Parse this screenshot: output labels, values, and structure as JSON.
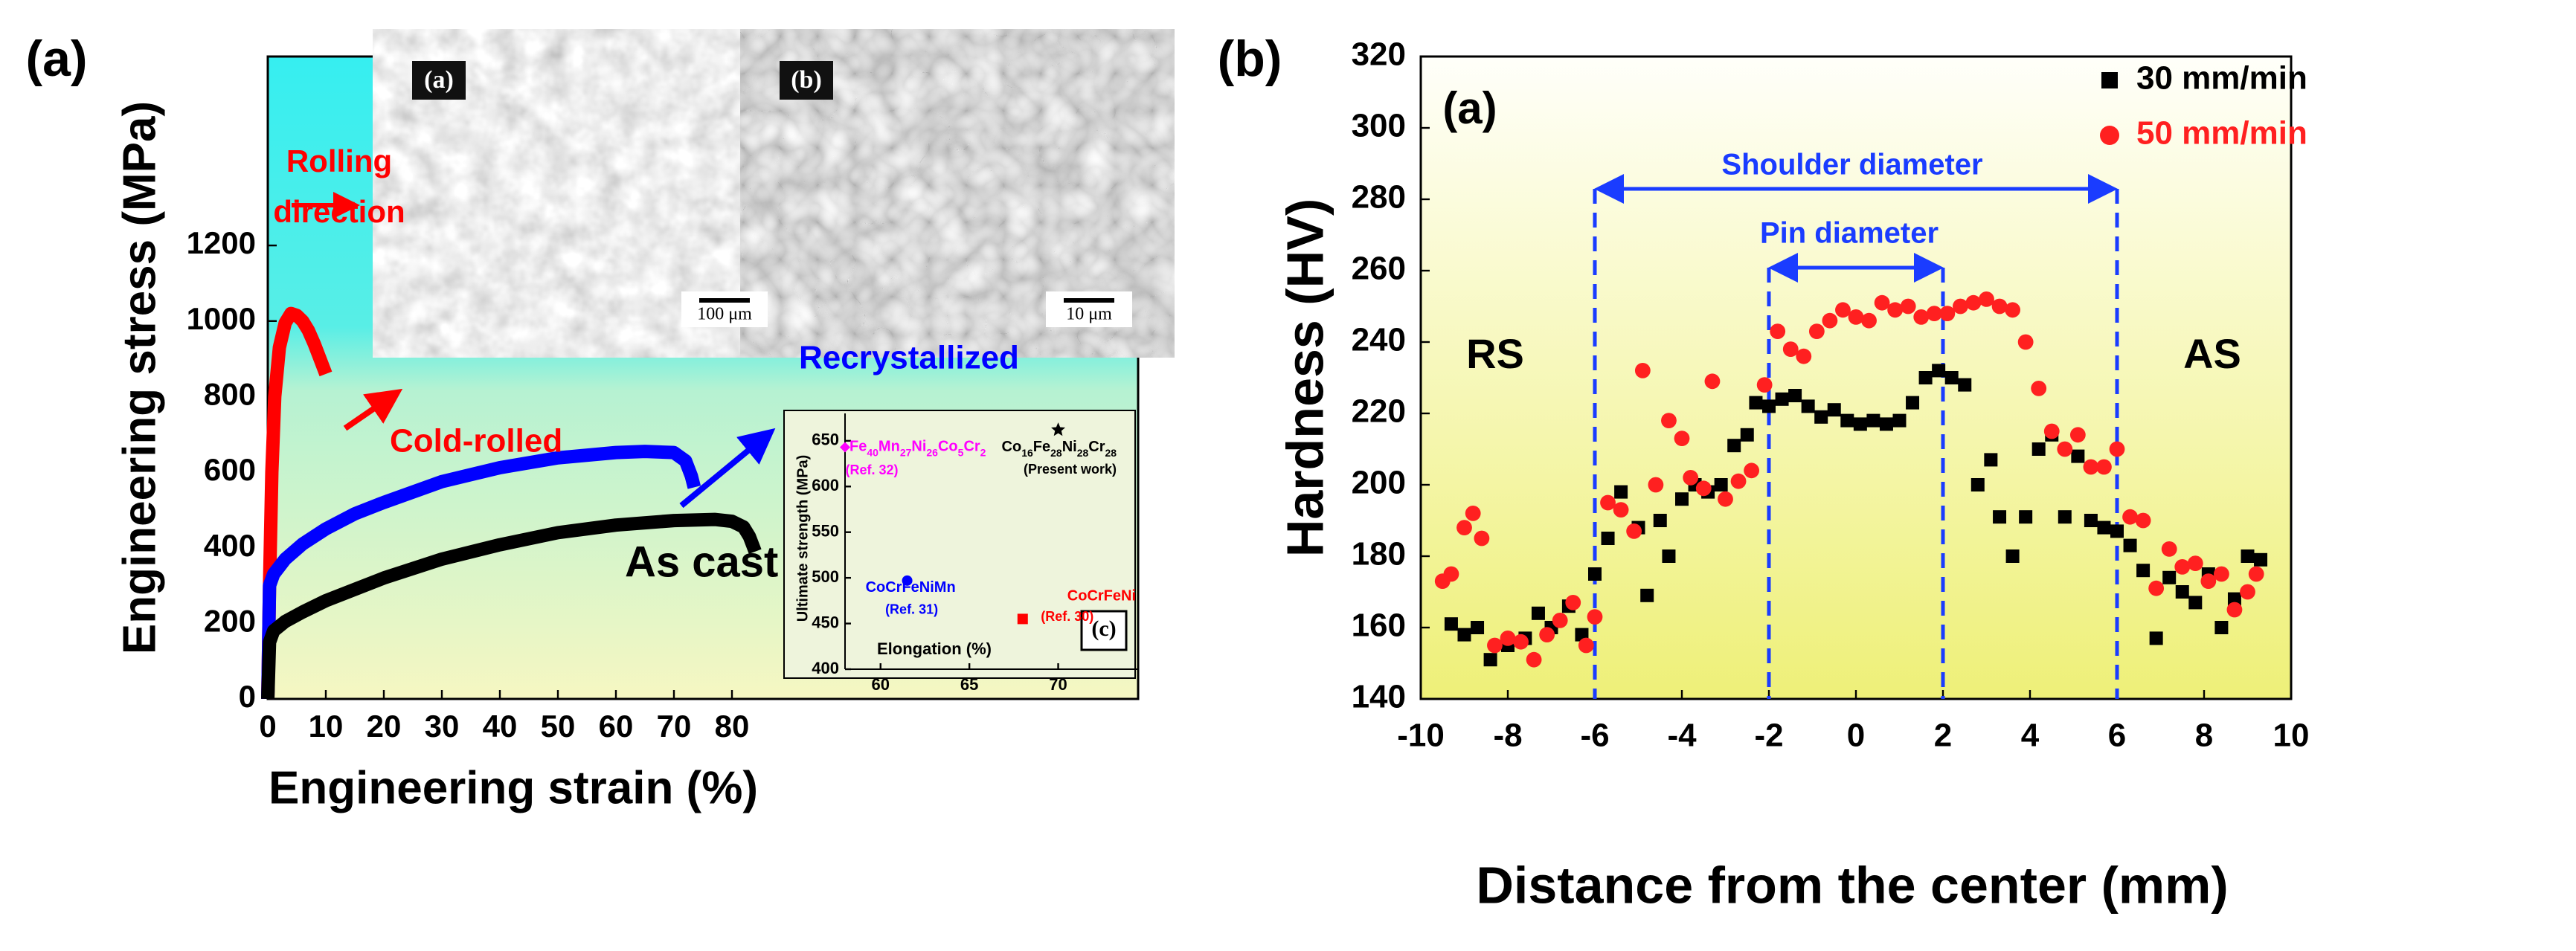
{
  "panel_labels": [
    "(a)",
    "(b)"
  ],
  "chart_data": [
    {
      "type": "line",
      "xlabel": "Engineering strain (%)",
      "ylabel": "Engineering stress (MPa)",
      "xlim": [
        0,
        150
      ],
      "xticks": [
        0,
        10,
        20,
        30,
        40,
        50,
        60,
        70,
        80
      ],
      "ylim": [
        0,
        1700
      ],
      "yticks": [
        0,
        200,
        400,
        600,
        800,
        1000,
        1200
      ],
      "series": [
        {
          "name": "Cold-rolled",
          "color": "#ff0000",
          "x": [
            0,
            0.3,
            0.7,
            1.2,
            2,
            3,
            4,
            5,
            6,
            7,
            8,
            9,
            10
          ],
          "values": [
            0,
            300,
            600,
            800,
            930,
            995,
            1020,
            1015,
            1000,
            975,
            940,
            900,
            860
          ]
        },
        {
          "name": "Recrystallized",
          "color": "#0000ff",
          "x": [
            0,
            0.3,
            1,
            3,
            6,
            10,
            15,
            20,
            30,
            40,
            50,
            60,
            65,
            70,
            72,
            73,
            73.5
          ],
          "values": [
            0,
            300,
            330,
            370,
            410,
            450,
            490,
            520,
            575,
            612,
            638,
            652,
            655,
            652,
            630,
            590,
            560
          ]
        },
        {
          "name": "As cast",
          "color": "#000000",
          "x": [
            0,
            0.3,
            1,
            3,
            6,
            10,
            15,
            20,
            30,
            40,
            50,
            60,
            70,
            77,
            80,
            82,
            83,
            84
          ],
          "values": [
            0,
            150,
            180,
            205,
            230,
            260,
            290,
            320,
            370,
            408,
            440,
            460,
            472,
            475,
            470,
            455,
            430,
            390
          ]
        }
      ],
      "annotations": [
        "Rolling direction"
      ],
      "images": [
        {
          "label": "(a)",
          "scale_bar": "100 μm"
        },
        {
          "label": "(b)",
          "scale_bar": "10 μm"
        }
      ]
    },
    {
      "type": "scatter",
      "panel": "(c)",
      "xlabel": "Elongation (%)",
      "ylabel": "Ultimate strength (MPa)",
      "xlim": [
        58,
        74.5
      ],
      "xticks": [
        60,
        65,
        70
      ],
      "ylim": [
        400,
        680
      ],
      "yticks": [
        400,
        450,
        500,
        550,
        600,
        650
      ],
      "series": [
        {
          "name": "Fe40Mn27Ni26Co5Cr2",
          "note": "(Ref. 32)",
          "color": "#ff00ff",
          "marker": "diamond",
          "x": [
            58
          ],
          "values": [
            643
          ]
        },
        {
          "name": "Co16Fe28Ni28Cr28",
          "note": "(Present work)",
          "color": "#000000",
          "marker": "star",
          "x": [
            70
          ],
          "values": [
            662
          ]
        },
        {
          "name": "CoCrFeNiMn",
          "note": "(Ref. 31)",
          "color": "#0000ff",
          "marker": "circle",
          "x": [
            61.5
          ],
          "values": [
            497
          ]
        },
        {
          "name": "CoCrFeNi",
          "note": "(Ref. 30)",
          "color": "#ff0000",
          "marker": "square",
          "x": [
            68
          ],
          "values": [
            455
          ]
        }
      ]
    },
    {
      "type": "scatter",
      "xlabel": "Distance from the center (mm)",
      "ylabel": "Hardness (HV)",
      "xlim": [
        -10,
        10
      ],
      "xticks": [
        -10,
        -8,
        -6,
        -4,
        -2,
        0,
        2,
        4,
        6,
        8,
        10
      ],
      "ylim": [
        140,
        320
      ],
      "yticks": [
        140,
        160,
        180,
        200,
        220,
        240,
        260,
        280,
        300,
        320
      ],
      "legend": "upper right",
      "vlines": [
        -6,
        -2,
        2,
        6
      ],
      "annotations": [
        "(a)",
        "RS",
        "AS",
        "Shoulder diameter",
        "Pin diameter"
      ],
      "series": [
        {
          "name": "30 mm/min",
          "color": "#000000",
          "marker": "square",
          "x": [
            -9.3,
            -9,
            -8.7,
            -8.4,
            -8,
            -7.6,
            -7.3,
            -7,
            -6.6,
            -6.3,
            -6,
            -5.7,
            -5.4,
            -5,
            -4.8,
            -4.5,
            -4.3,
            -4,
            -3.7,
            -3.4,
            -3.1,
            -2.8,
            -2.5,
            -2.3,
            -2,
            -1.7,
            -1.4,
            -1.1,
            -0.8,
            -0.5,
            -0.2,
            0.1,
            0.4,
            0.7,
            1,
            1.3,
            1.6,
            1.9,
            2.2,
            2.5,
            2.8,
            3.1,
            3.3,
            3.6,
            3.9,
            4.2,
            4.5,
            4.8,
            5.1,
            5.4,
            5.7,
            6,
            6.3,
            6.6,
            6.9,
            7.2,
            7.5,
            7.8,
            8.1,
            8.4,
            8.7,
            9,
            9.3
          ],
          "values": [
            161,
            158,
            160,
            151,
            155,
            157,
            164,
            160,
            166,
            158,
            175,
            185,
            198,
            188,
            169,
            190,
            180,
            196,
            200,
            198,
            200,
            211,
            214,
            223,
            222,
            224,
            225,
            222,
            219,
            221,
            218,
            217,
            218,
            217,
            218,
            223,
            230,
            232,
            230,
            228,
            200,
            207,
            191,
            180,
            191,
            210,
            214,
            191,
            208,
            190,
            188,
            187,
            183,
            176,
            157,
            174,
            170,
            167,
            175,
            160,
            168,
            180,
            179
          ]
        },
        {
          "name": "50 mm/min",
          "color": "#ff2020",
          "marker": "circle",
          "x": [
            -9.5,
            -9.3,
            -9,
            -8.8,
            -8.6,
            -8.3,
            -8,
            -7.7,
            -7.4,
            -7.1,
            -6.8,
            -6.5,
            -6.2,
            -6,
            -5.7,
            -5.4,
            -5.1,
            -4.9,
            -4.6,
            -4.3,
            -4,
            -3.8,
            -3.5,
            -3.3,
            -3,
            -2.7,
            -2.4,
            -2.1,
            -1.8,
            -1.5,
            -1.2,
            -0.9,
            -0.6,
            -0.3,
            0,
            0.3,
            0.6,
            0.9,
            1.2,
            1.5,
            1.8,
            2.1,
            2.4,
            2.7,
            3,
            3.3,
            3.6,
            3.9,
            4.2,
            4.5,
            4.8,
            5.1,
            5.4,
            5.7,
            6,
            6.3,
            6.6,
            6.9,
            7.2,
            7.5,
            7.8,
            8.1,
            8.4,
            8.7,
            9,
            9.2
          ],
          "values": [
            173,
            175,
            188,
            192,
            185,
            155,
            157,
            156,
            151,
            158,
            162,
            167,
            155,
            163,
            195,
            193,
            187,
            232,
            200,
            218,
            213,
            202,
            199,
            229,
            196,
            201,
            204,
            228,
            243,
            238,
            236,
            243,
            246,
            249,
            247,
            246,
            251,
            249,
            250,
            247,
            248,
            248,
            250,
            251,
            252,
            250,
            249,
            240,
            227,
            215,
            210,
            214,
            205,
            205,
            210,
            191,
            190,
            171,
            182,
            177,
            178,
            173,
            175,
            165,
            170,
            175
          ]
        }
      ]
    }
  ]
}
